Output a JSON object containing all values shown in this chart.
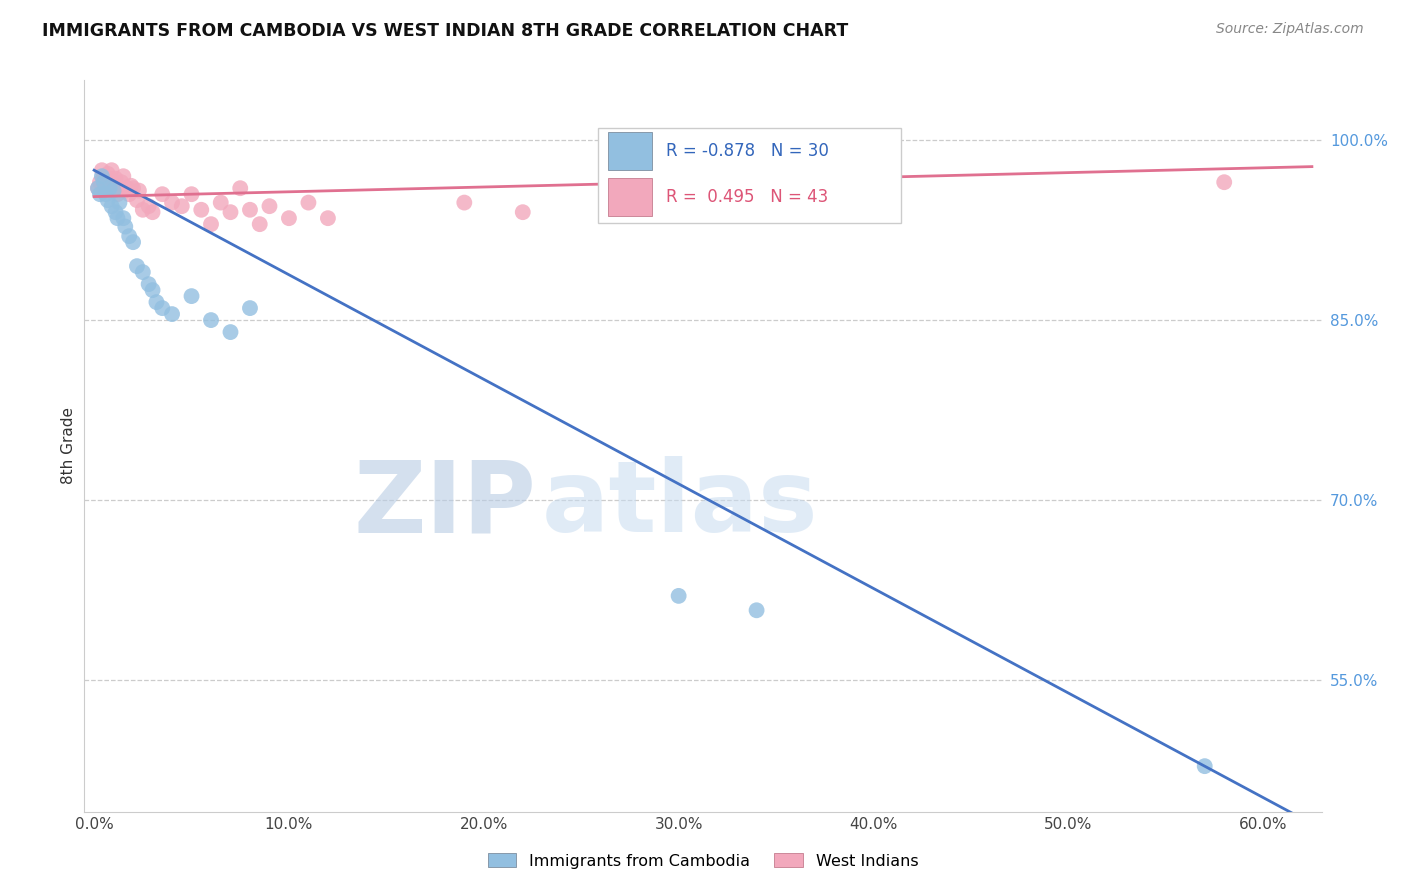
{
  "title": "IMMIGRANTS FROM CAMBODIA VS WEST INDIAN 8TH GRADE CORRELATION CHART",
  "source": "Source: ZipAtlas.com",
  "ylabel": "8th Grade",
  "xlabel_ticks": [
    "0.0%",
    "10.0%",
    "20.0%",
    "30.0%",
    "40.0%",
    "50.0%",
    "60.0%"
  ],
  "xlabel_vals": [
    0.0,
    0.1,
    0.2,
    0.3,
    0.4,
    0.5,
    0.6
  ],
  "ylabel_ticks": [
    "100.0%",
    "85.0%",
    "70.0%",
    "55.0%"
  ],
  "ylabel_vals": [
    1.0,
    0.85,
    0.7,
    0.55
  ],
  "ylim": [
    0.44,
    1.05
  ],
  "xlim": [
    -0.005,
    0.63
  ],
  "legend_blue_R": "-0.878",
  "legend_blue_N": "30",
  "legend_pink_R": "0.495",
  "legend_pink_N": "43",
  "blue_color": "#92BFE0",
  "pink_color": "#F2A8BC",
  "blue_line_color": "#4472C4",
  "pink_line_color": "#E07090",
  "blue_scatter_x": [
    0.002,
    0.003,
    0.004,
    0.005,
    0.006,
    0.007,
    0.008,
    0.009,
    0.01,
    0.011,
    0.012,
    0.013,
    0.015,
    0.016,
    0.018,
    0.02,
    0.022,
    0.025,
    0.028,
    0.03,
    0.032,
    0.035,
    0.04,
    0.05,
    0.06,
    0.07,
    0.08,
    0.3,
    0.34,
    0.57
  ],
  "blue_scatter_y": [
    0.96,
    0.955,
    0.97,
    0.965,
    0.955,
    0.95,
    0.96,
    0.945,
    0.958,
    0.94,
    0.935,
    0.948,
    0.935,
    0.928,
    0.92,
    0.915,
    0.895,
    0.89,
    0.88,
    0.875,
    0.865,
    0.86,
    0.855,
    0.87,
    0.85,
    0.84,
    0.86,
    0.62,
    0.608,
    0.478
  ],
  "pink_scatter_x": [
    0.002,
    0.003,
    0.004,
    0.005,
    0.005,
    0.006,
    0.007,
    0.008,
    0.009,
    0.01,
    0.011,
    0.012,
    0.013,
    0.014,
    0.015,
    0.016,
    0.017,
    0.018,
    0.019,
    0.02,
    0.022,
    0.023,
    0.025,
    0.028,
    0.03,
    0.035,
    0.04,
    0.045,
    0.05,
    0.055,
    0.06,
    0.065,
    0.07,
    0.075,
    0.08,
    0.085,
    0.09,
    0.1,
    0.11,
    0.12,
    0.19,
    0.22,
    0.58
  ],
  "pink_scatter_y": [
    0.96,
    0.965,
    0.975,
    0.97,
    0.958,
    0.965,
    0.972,
    0.968,
    0.975,
    0.96,
    0.968,
    0.955,
    0.96,
    0.965,
    0.97,
    0.958,
    0.96,
    0.955,
    0.962,
    0.96,
    0.95,
    0.958,
    0.942,
    0.945,
    0.94,
    0.955,
    0.948,
    0.945,
    0.955,
    0.942,
    0.93,
    0.948,
    0.94,
    0.96,
    0.942,
    0.93,
    0.945,
    0.935,
    0.948,
    0.935,
    0.948,
    0.94,
    0.965
  ],
  "blue_line_x0": 0.0,
  "blue_line_x1": 0.625,
  "blue_line_y0": 0.975,
  "blue_line_y1": 0.43,
  "pink_line_x0": 0.0,
  "pink_line_x1": 0.625,
  "pink_line_y0": 0.953,
  "pink_line_y1": 0.978
}
